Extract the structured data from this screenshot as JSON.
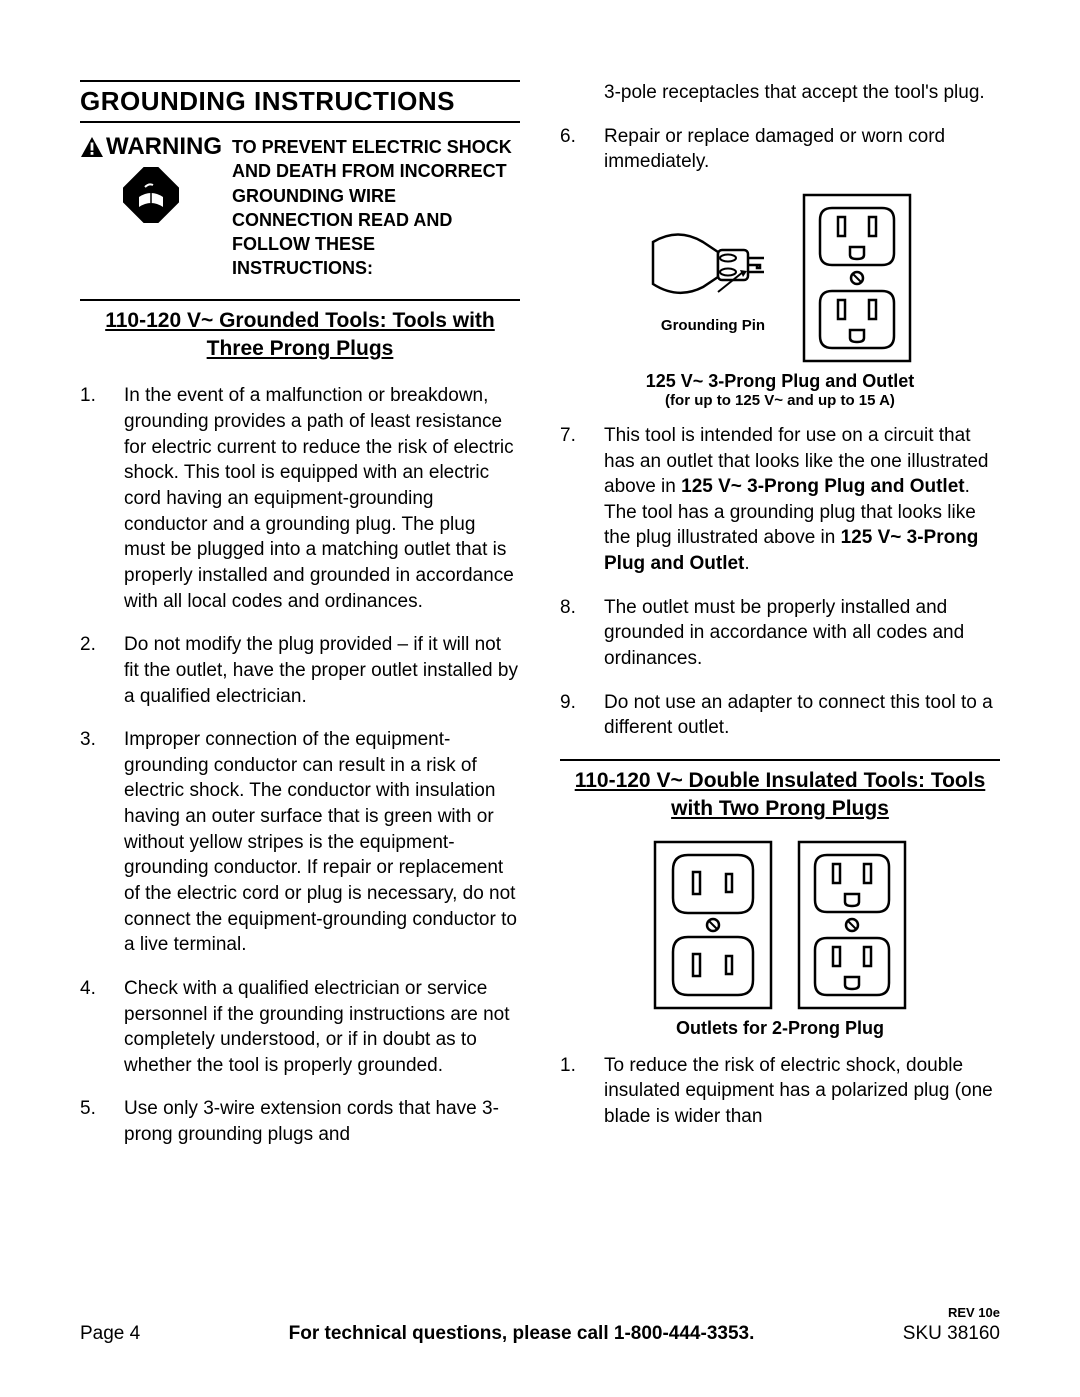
{
  "section_title": "GROUNDING INSTRUCTIONS",
  "warning": {
    "label": "WARNING",
    "text": "TO PREVENT ELECTRIC SHOCK AND DEATH FROM INCORRECT GROUNDING WIRE CONNECTION READ AND FOLLOW THESE INSTRUCTIONS:"
  },
  "heading1": "110-120 V~ Grounded Tools: Tools with Three Prong Plugs",
  "left_items": [
    "In the event of a malfunction or breakdown, grounding provides a path of least resistance for electric current to reduce the risk of electric shock. This tool is equipped with an electric cord having an equipment-grounding conductor and a grounding plug.  The plug must be plugged into a matching outlet that is properly installed and grounded in accordance with all local codes and ordinances.",
    "Do not modify the plug provided – if it will not fit the outlet, have the proper outlet installed by a qualified electrician.",
    "Improper connection of the equipment-grounding conductor can result in a risk of electric shock. The conductor with insulation having an outer surface that is green with or without yellow stripes is the equipment-grounding conductor. If repair or replacement of the electric cord or plug is necessary, do not connect the equipment-grounding conductor to a live terminal.",
    "Check with a qualified electrician or service personnel if the grounding instructions are not completely understood, or if in doubt as to whether the tool is properly grounded.",
    "Use only 3-wire extension cords that have 3-prong grounding plugs and"
  ],
  "right_top_plain": "3-pole receptacles that accept the tool's plug.",
  "right_items": [
    "Repair or replace damaged or worn cord immediately."
  ],
  "plug_label": "Grounding Pin",
  "fig1_caption": "125 V~ 3-Prong Plug and Outlet",
  "fig1_sub": "(for up to 125 V~ and up to 15 A)",
  "right_items2": [
    {
      "n": "7.",
      "parts": [
        "This tool is intended for use on a circuit that has an outlet that looks like the one illustrated above in ",
        {
          "b": "125 V~ 3-Prong Plug and Outlet"
        },
        ".  The tool has a grounding plug that looks like the plug illustrated above in ",
        {
          "b": "125 V~ 3-Prong Plug and Outlet"
        },
        "."
      ]
    },
    {
      "n": "8.",
      "parts": [
        "The outlet must be properly installed and grounded in accordance with all codes and ordinances."
      ]
    },
    {
      "n": "9.",
      "parts": [
        "Do not use an adapter to connect this tool to a different outlet."
      ]
    }
  ],
  "heading2": "110-120 V~ Double Insulated Tools: Tools with Two Prong Plugs",
  "fig2_caption": "Outlets for 2-Prong Plug",
  "right_items3": [
    "To reduce the risk of electric shock, double insulated equipment has a polarized plug (one blade is wider than"
  ],
  "footer": {
    "rev": "REV 10e",
    "page": "Page 4",
    "center": "For technical questions, please call 1-800-444-3353.",
    "sku": "SKU 38160"
  },
  "colors": {
    "text": "#000000",
    "bg": "#ffffff",
    "line": "#000000"
  }
}
